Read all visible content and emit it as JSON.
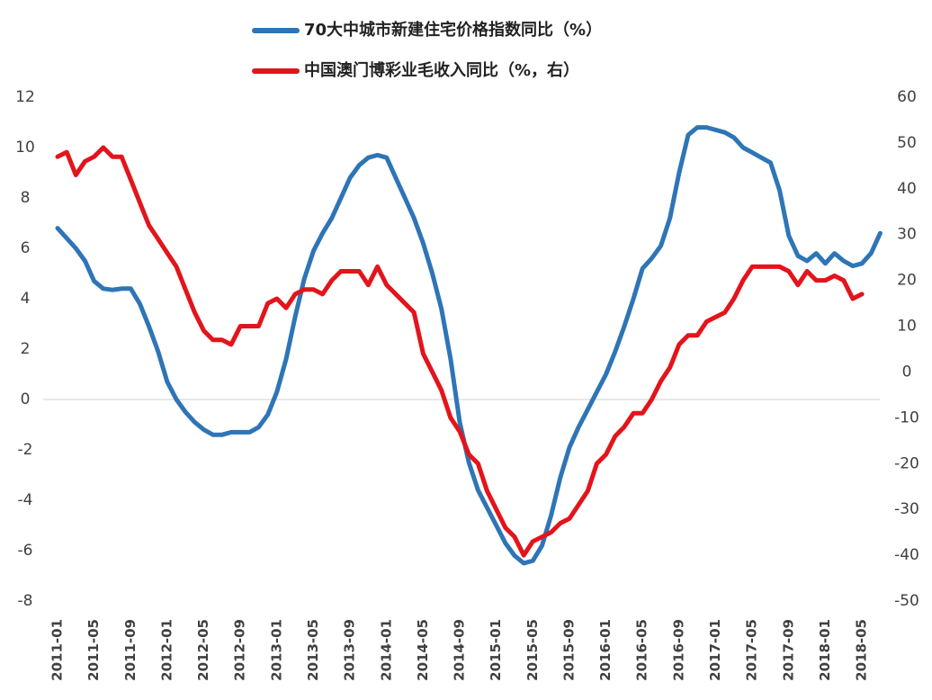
{
  "chart_data": {
    "type": "line",
    "categories": [
      "2011-01",
      null,
      null,
      null,
      "2011-05",
      null,
      null,
      null,
      "2011-09",
      null,
      null,
      null,
      "2012-01",
      null,
      null,
      null,
      "2012-05",
      null,
      null,
      null,
      "2012-09",
      null,
      null,
      null,
      "2013-01",
      null,
      null,
      null,
      "2013-05",
      null,
      null,
      null,
      "2013-09",
      null,
      null,
      null,
      "2014-01",
      null,
      null,
      null,
      "2014-05",
      null,
      null,
      null,
      "2014-09",
      null,
      null,
      null,
      "2015-01",
      null,
      null,
      null,
      "2015-05",
      null,
      null,
      null,
      "2015-09",
      null,
      null,
      null,
      "2016-01",
      null,
      null,
      null,
      "2016-05",
      null,
      null,
      null,
      "2016-09",
      null,
      null,
      null,
      "2017-01",
      null,
      null,
      null,
      "2017-05",
      null,
      null,
      null,
      "2017-09",
      null,
      null,
      null,
      "2018-01",
      null,
      null,
      null,
      "2018-05",
      null,
      null
    ],
    "series": [
      {
        "name": "70大中城市新建住宅价格指数同比（%）",
        "color": "#2e75b6",
        "axis": "y",
        "values": [
          6.8,
          6.4,
          6.0,
          5.5,
          4.7,
          4.4,
          4.35,
          4.4,
          4.4,
          3.8,
          2.9,
          1.9,
          0.7,
          0.0,
          -0.5,
          -0.9,
          -1.2,
          -1.4,
          -1.4,
          -1.3,
          -1.3,
          -1.3,
          -1.1,
          -0.6,
          0.3,
          1.6,
          3.3,
          4.8,
          5.9,
          6.6,
          7.2,
          8.0,
          8.8,
          9.3,
          9.6,
          9.7,
          9.6,
          8.8,
          8.0,
          7.2,
          6.2,
          5.0,
          3.6,
          1.6,
          -0.9,
          -2.5,
          -3.6,
          -4.3,
          -5.0,
          -5.7,
          -6.2,
          -6.5,
          -6.4,
          -5.8,
          -4.6,
          -3.1,
          -1.9,
          -1.1,
          -0.4,
          0.3,
          1.0,
          1.9,
          2.9,
          4.0,
          5.2,
          5.6,
          6.1,
          7.2,
          9.0,
          10.5,
          10.8,
          10.8,
          10.7,
          10.6,
          10.4,
          10.0,
          9.8,
          9.6,
          9.4,
          8.3,
          6.5,
          5.7,
          5.5,
          5.8,
          5.4,
          5.8,
          5.5,
          5.3,
          5.4,
          5.8,
          6.6
        ]
      },
      {
        "name": "中国澳门博彩业毛收入同比（%，右）",
        "color": "#e3141b",
        "axis": "y2",
        "values": [
          47,
          48,
          43,
          46,
          47,
          49,
          47,
          47,
          42,
          37,
          32,
          29,
          26,
          23,
          18,
          13,
          9,
          7,
          7,
          6,
          10,
          10,
          10,
          15,
          16,
          14,
          17,
          18,
          18,
          17,
          20,
          22,
          22,
          22,
          19,
          23,
          19,
          17,
          15,
          13,
          4,
          0,
          -4,
          -10,
          -13,
          -18,
          -20,
          -26,
          -30,
          -34,
          -36,
          -40,
          -37,
          -36,
          -35,
          -33,
          -32,
          -29,
          -26,
          -20,
          -18,
          -14,
          -12,
          -9,
          -9,
          -6,
          -2,
          1,
          6,
          8,
          8,
          11,
          12,
          13,
          16,
          20,
          23,
          23,
          23,
          23,
          22,
          19,
          22,
          20,
          20,
          21,
          20,
          16,
          17,
          null,
          null
        ]
      }
    ],
    "ylim": [
      -8,
      12
    ],
    "yticks": [
      12,
      10,
      8,
      6,
      4,
      2,
      0,
      -2,
      -4,
      -6,
      -8
    ],
    "y2lim": [
      -50,
      60
    ],
    "y2ticks": [
      60,
      50,
      40,
      30,
      20,
      10,
      0,
      -10,
      -20,
      -30,
      -40,
      -50
    ],
    "zero_line": true
  }
}
